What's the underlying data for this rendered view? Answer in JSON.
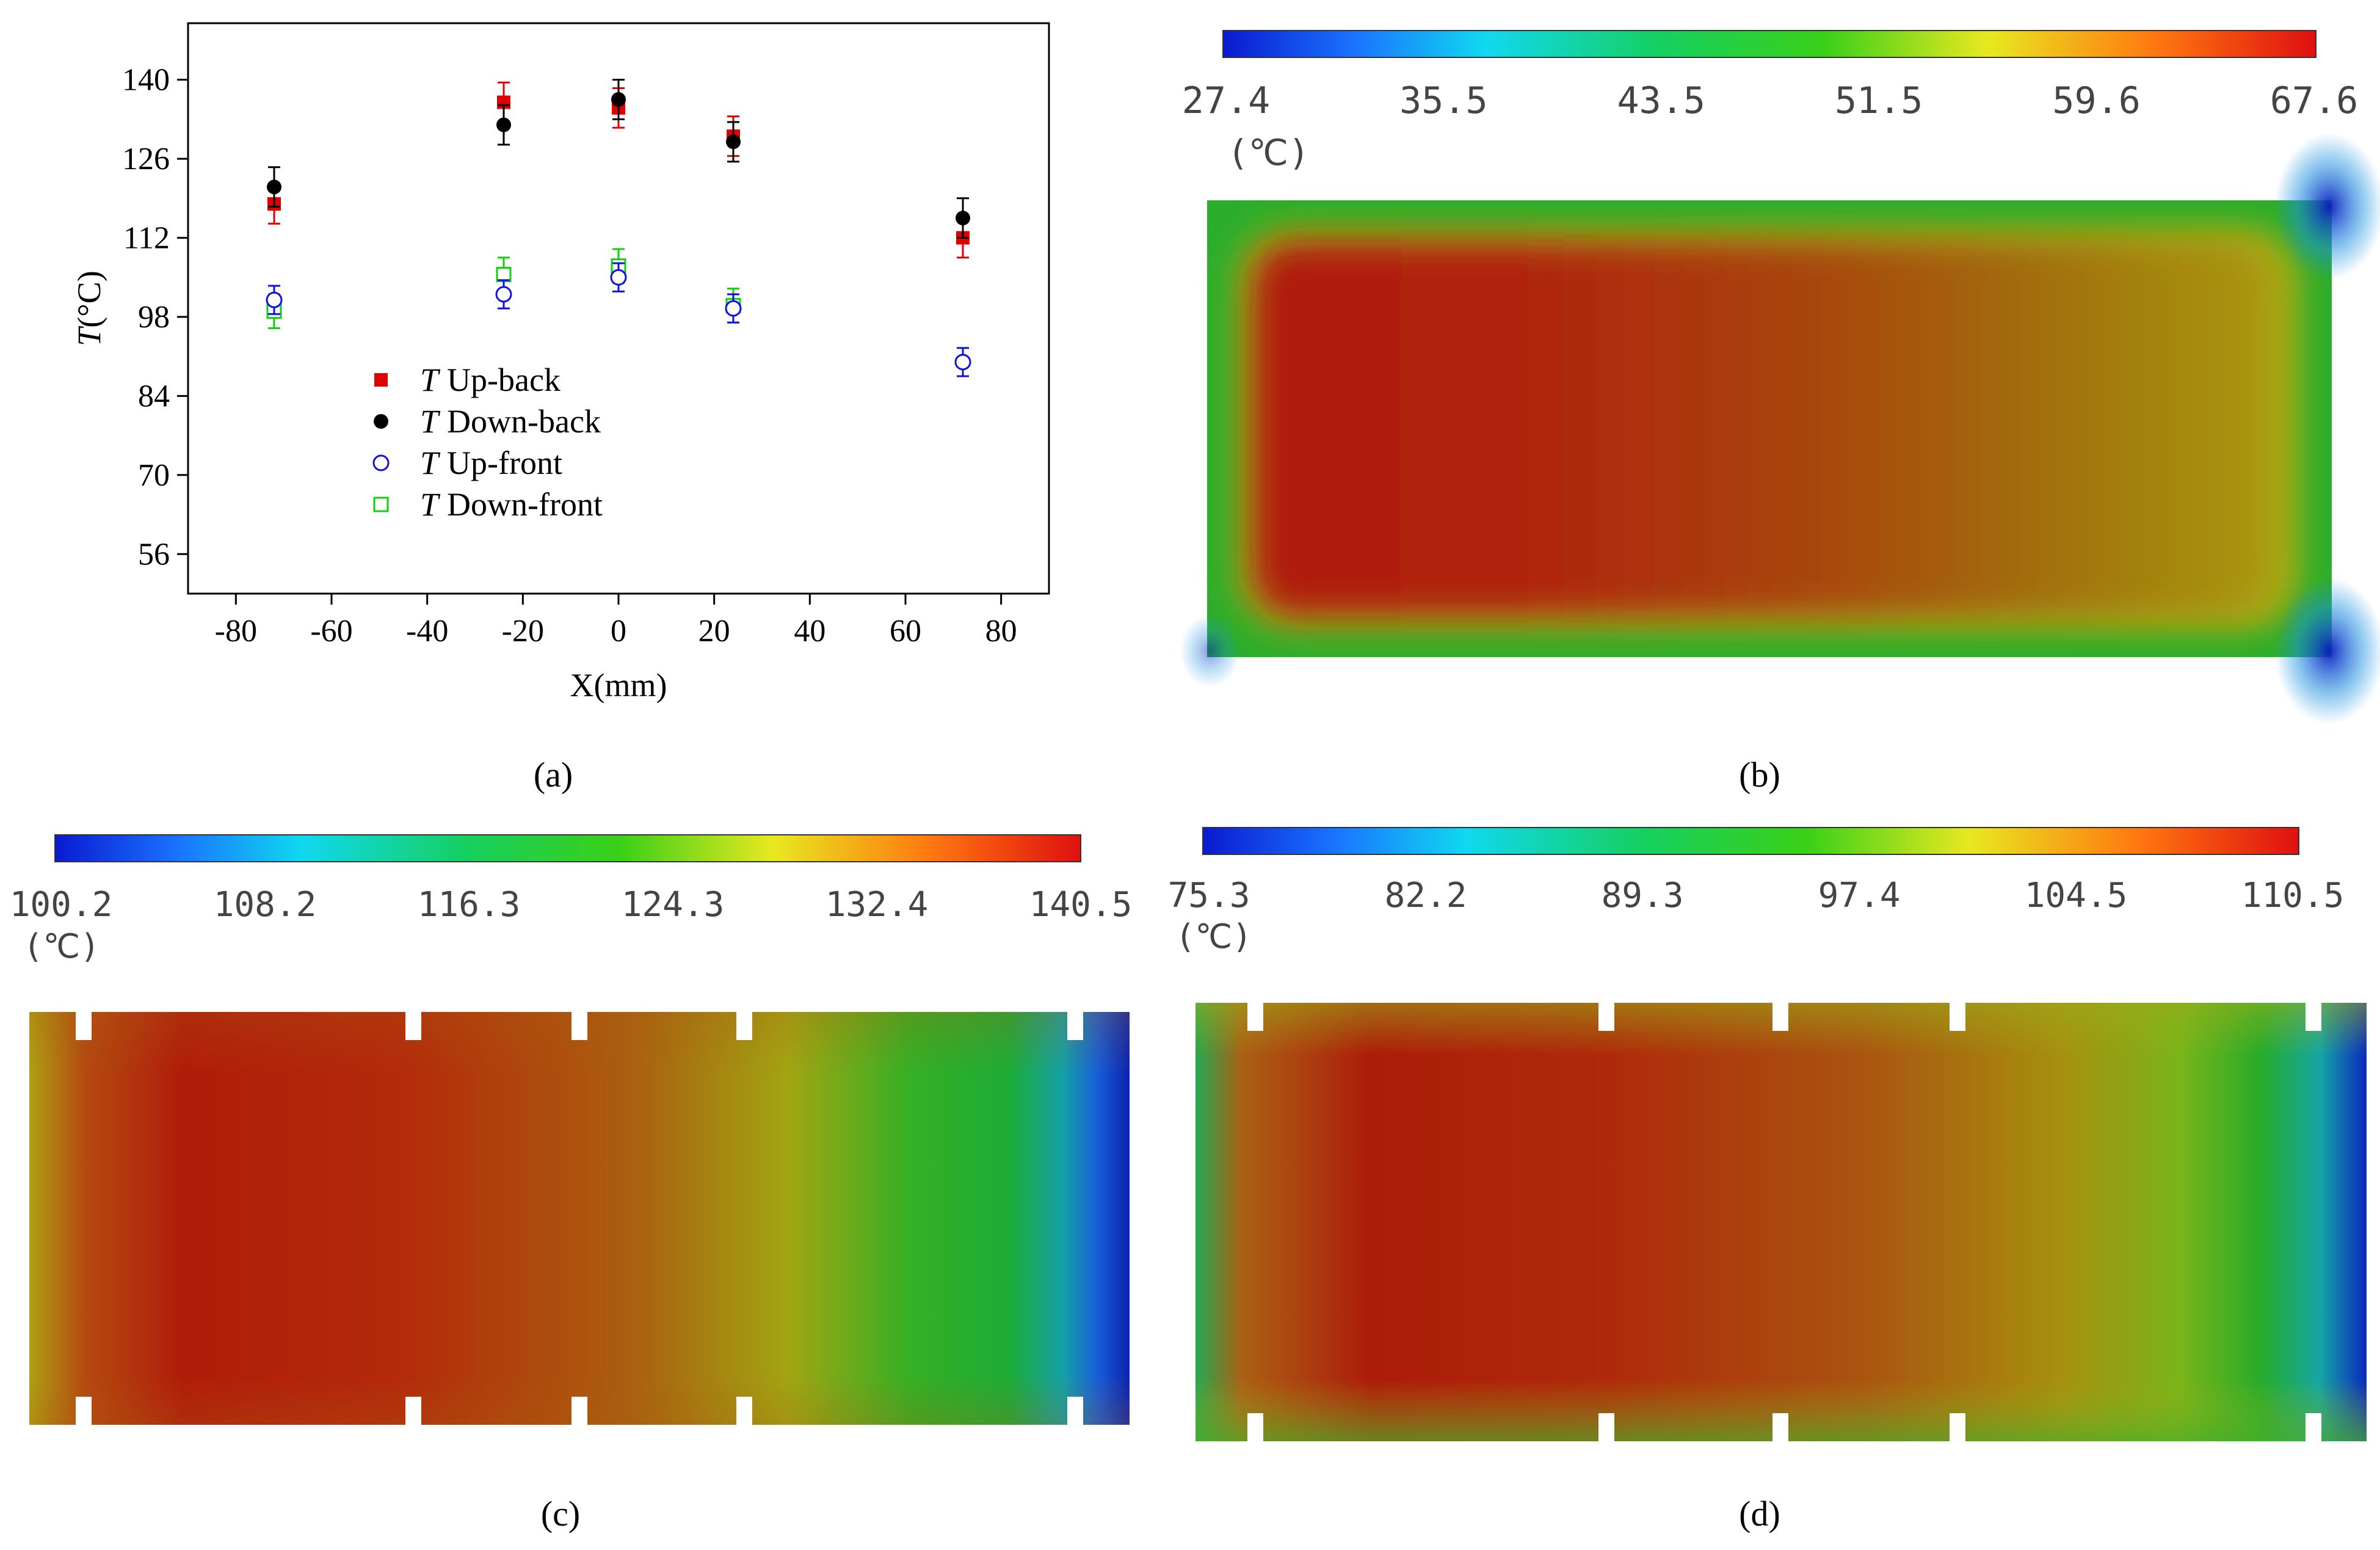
{
  "panels": {
    "a": {
      "label": "(a)"
    },
    "b": {
      "label": "(b)"
    },
    "c": {
      "label": "(c)"
    },
    "d": {
      "label": "(d)"
    }
  },
  "chart_data": [
    {
      "type": "scatter",
      "panel": "a",
      "xlabel": "X(mm)",
      "ylabel_italic": "T",
      "ylabel_unit": "(°C)",
      "xlim": [
        -90,
        90
      ],
      "ylim": [
        49,
        150
      ],
      "xticks": [
        "-80",
        "-60",
        "-40",
        "-20",
        "0",
        "20",
        "40",
        "60",
        "80"
      ],
      "xtick_values": [
        -80,
        -60,
        -40,
        -20,
        0,
        20,
        40,
        60,
        80
      ],
      "yticks": [
        "56",
        "70",
        "84",
        "98",
        "112",
        "126",
        "140"
      ],
      "ytick_values": [
        56,
        70,
        84,
        98,
        112,
        126,
        140
      ],
      "legend_position": "center-left",
      "series": [
        {
          "key": "upback",
          "prefix": "T",
          "name": "Up-back",
          "marker": "filled-square",
          "color": "#e00000",
          "x": [
            -72,
            -24,
            0,
            24,
            72
          ],
          "y": [
            118,
            136,
            135,
            130,
            112
          ],
          "err": [
            3.5,
            3.5,
            3.5,
            3.5,
            3.5
          ]
        },
        {
          "key": "downback",
          "prefix": "T",
          "name": "Down-back",
          "marker": "filled-circle",
          "color": "#000000",
          "x": [
            -72,
            -24,
            0,
            24,
            72
          ],
          "y": [
            121,
            132,
            136.5,
            129,
            115.5
          ],
          "err": [
            3.5,
            3.5,
            3.5,
            3.5,
            3.5
          ]
        },
        {
          "key": "upfront",
          "prefix": "T",
          "name": "Up-front",
          "marker": "open-circle",
          "color": "#1010e0",
          "x": [
            -72,
            -24,
            0,
            24,
            72
          ],
          "y": [
            101,
            102,
            105,
            99.5,
            90
          ],
          "err": [
            2.5,
            2.5,
            2.5,
            2.5,
            2.5
          ]
        },
        {
          "key": "downfront",
          "prefix": "T",
          "name": "Down-front",
          "marker": "open-square",
          "color": "#10d010",
          "x": [
            -72,
            -24,
            0,
            24
          ],
          "y": [
            99,
            105.5,
            107,
            100
          ],
          "err": [
            3,
            3,
            3,
            3
          ]
        }
      ]
    },
    {
      "type": "heatmap",
      "panel": "b",
      "colorbar_ticks": [
        "27.4",
        "35.5",
        "43.5",
        "51.5",
        "59.6",
        "67.6"
      ],
      "colorbar_unit": "(℃)"
    },
    {
      "type": "heatmap",
      "panel": "c",
      "colorbar_ticks": [
        "100.2",
        "108.2",
        "116.3",
        "124.3",
        "132.4",
        "140.5"
      ],
      "colorbar_unit": "(℃)"
    },
    {
      "type": "heatmap",
      "panel": "d",
      "colorbar_ticks": [
        "75.3",
        "82.2",
        "89.3",
        "97.4",
        "104.5",
        "110.5"
      ],
      "colorbar_unit": "(℃)"
    }
  ]
}
